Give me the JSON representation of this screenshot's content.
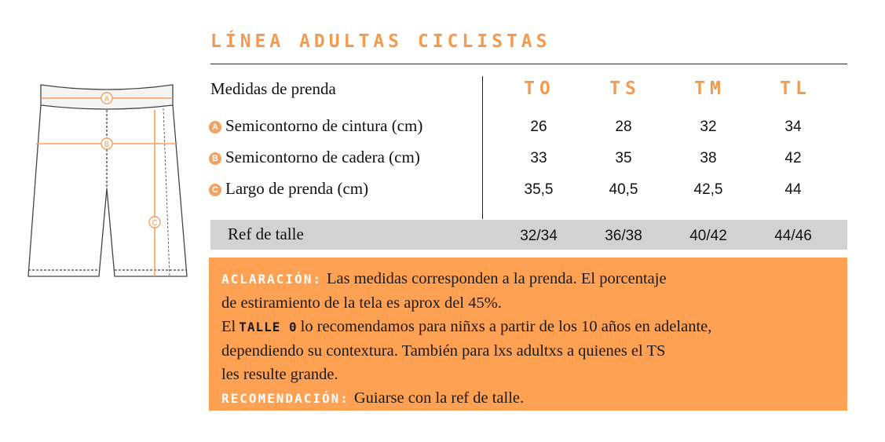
{
  "title": "LÍNEA ADULTAS CICLISTAS",
  "diagram": {
    "markers": [
      "A",
      "B",
      "C"
    ],
    "accent_color": "#f3a061"
  },
  "table": {
    "header_label": "Medidas de prenda",
    "sizes": [
      "TO",
      "TS",
      "TM",
      "TL"
    ],
    "rows": [
      {
        "badge": "A",
        "label": "Semicontorno de cintura (cm)",
        "values": [
          "26",
          "28",
          "32",
          "34"
        ]
      },
      {
        "badge": "B",
        "label": "Semicontorno de cadera (cm)",
        "values": [
          "33",
          "35",
          "38",
          "42"
        ]
      },
      {
        "badge": "C",
        "label": "Largo de prenda (cm)",
        "values": [
          "35,5",
          "40,5",
          "42,5",
          "44"
        ]
      }
    ],
    "ref": {
      "label": "Ref de talle",
      "values": [
        "32/34",
        "36/38",
        "40/42",
        "44/46"
      ]
    }
  },
  "note": {
    "aclaracion_label": "ACLARACIÓN:",
    "line1": "Las medidas corresponden a la prenda. El porcentaje",
    "line2": "de estiramiento de la tela es aprox del 45%.",
    "line3_prefix": "El",
    "talle_label": "TALLE 0",
    "line3_rest": "lo recomendamos para niñxs a partir de los 10 años en adelante,",
    "line4": "dependiendo su contextura. También para lxs adultxs a quienes el TS",
    "line5": "les resulte grande.",
    "recomendacion_label": "RECOMENDACIÓN:",
    "recomendacion_text": "Guiarse con la ref de talle."
  },
  "colors": {
    "accent": "#f39a4f",
    "note_bg": "#ffa153",
    "ref_bg": "#d2d2d2"
  }
}
